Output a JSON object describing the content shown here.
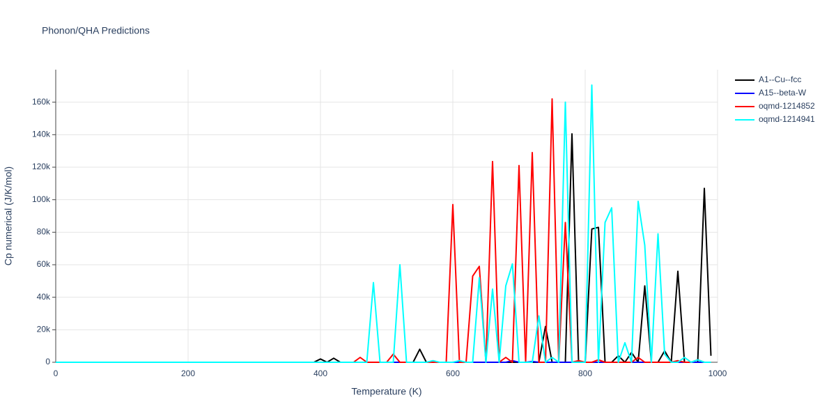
{
  "chart_data": {
    "type": "line",
    "title": "Phonon/QHA Predictions",
    "x_label": "Temperature (K)",
    "y_label": "Cp numerical (J/K/mol)",
    "x": [
      0,
      10,
      20,
      30,
      40,
      50,
      60,
      70,
      80,
      90,
      100,
      110,
      120,
      130,
      140,
      150,
      160,
      170,
      180,
      190,
      200,
      210,
      220,
      230,
      240,
      250,
      260,
      270,
      280,
      290,
      300,
      310,
      320,
      330,
      340,
      350,
      360,
      370,
      380,
      390,
      400,
      410,
      420,
      430,
      440,
      450,
      460,
      470,
      480,
      490,
      500,
      510,
      520,
      530,
      540,
      550,
      560,
      570,
      580,
      590,
      600,
      610,
      620,
      630,
      640,
      650,
      660,
      670,
      680,
      690,
      700,
      710,
      720,
      730,
      740,
      750,
      760,
      770,
      780,
      790,
      800,
      810,
      820,
      830,
      840,
      850,
      860,
      870,
      880,
      890,
      900,
      910,
      920,
      930,
      940,
      950,
      960,
      970,
      980,
      990
    ],
    "series": [
      {
        "name": "A1--Cu--fcc",
        "color": "#000000",
        "values": [
          0,
          0,
          0,
          0,
          0,
          0,
          0,
          0,
          0,
          0,
          0,
          0,
          0,
          0,
          0,
          0,
          0,
          0,
          0,
          0,
          0,
          0,
          0,
          0,
          0,
          0,
          0,
          0,
          0,
          0,
          0,
          0,
          0,
          0,
          0,
          0,
          0,
          0,
          0,
          0,
          2000,
          0,
          2500,
          0,
          0,
          0,
          0,
          0,
          0,
          0,
          0,
          0,
          0,
          0,
          0,
          8000,
          0,
          0,
          0,
          0,
          0,
          0,
          0,
          0,
          0,
          0,
          0,
          0,
          0,
          0,
          0,
          0,
          0,
          0,
          22000,
          0,
          0,
          0,
          140500,
          0,
          0,
          82000,
          83000,
          0,
          0,
          4000,
          0,
          6000,
          0,
          47000,
          0,
          0,
          7000,
          0,
          56000,
          0,
          0,
          0,
          107000,
          4000
        ]
      },
      {
        "name": "A15--beta-W",
        "color": "#0000ff",
        "values": [
          0,
          0,
          0,
          0,
          0,
          0,
          0,
          0,
          0,
          0,
          0,
          0,
          0,
          0,
          0,
          0,
          0,
          0,
          0,
          0,
          0,
          0,
          0,
          0,
          0,
          0,
          0,
          0,
          0,
          0,
          0,
          0,
          0,
          0,
          0,
          0,
          0,
          0,
          0,
          0,
          0,
          0,
          0,
          0,
          0,
          0,
          0,
          0,
          0,
          0,
          0,
          0,
          0,
          0,
          0,
          0,
          0,
          0,
          0,
          0,
          0,
          0,
          0,
          0,
          0,
          0,
          0,
          0,
          0,
          1000,
          0,
          0,
          500,
          0,
          0,
          0,
          0,
          0,
          0,
          0,
          0,
          0,
          0,
          0,
          0,
          0,
          0,
          0,
          0,
          0,
          0,
          0,
          0,
          0,
          0,
          0,
          0,
          0,
          0,
          0
        ]
      },
      {
        "name": "oqmd-1214852",
        "color": "#ff0000",
        "values": [
          0,
          0,
          0,
          0,
          0,
          0,
          0,
          0,
          0,
          0,
          0,
          0,
          0,
          0,
          0,
          0,
          0,
          0,
          0,
          0,
          0,
          0,
          0,
          0,
          0,
          0,
          0,
          0,
          0,
          0,
          0,
          0,
          0,
          0,
          0,
          0,
          0,
          0,
          0,
          0,
          0,
          0,
          0,
          0,
          0,
          0,
          3000,
          0,
          0,
          0,
          0,
          5000,
          0,
          0,
          0,
          0,
          0,
          0,
          0,
          0,
          97000,
          0,
          0,
          53000,
          59000,
          0,
          123500,
          0,
          3000,
          0,
          121000,
          0,
          129000,
          0,
          0,
          162000,
          0,
          86000,
          0,
          1000,
          0,
          0,
          1500,
          0,
          0,
          0,
          0,
          0,
          3000,
          0,
          0,
          0,
          0,
          0,
          1000,
          0,
          0,
          1500,
          0,
          0
        ]
      },
      {
        "name": "oqmd-1214941",
        "color": "#00ffff",
        "values": [
          0,
          0,
          0,
          0,
          0,
          0,
          0,
          0,
          0,
          0,
          0,
          0,
          0,
          0,
          0,
          0,
          0,
          0,
          0,
          0,
          0,
          0,
          0,
          0,
          0,
          0,
          0,
          0,
          0,
          0,
          0,
          0,
          0,
          0,
          0,
          0,
          0,
          0,
          0,
          0,
          0,
          0,
          0,
          0,
          0,
          0,
          0,
          0,
          49000,
          0,
          0,
          0,
          60000,
          0,
          0,
          0,
          0,
          1000,
          0,
          0,
          0,
          1000,
          0,
          0,
          52000,
          0,
          45000,
          0,
          47000,
          60500,
          0,
          0,
          0,
          28500,
          0,
          3000,
          0,
          160000,
          0,
          0,
          0,
          170500,
          0,
          86000,
          95000,
          0,
          12000,
          0,
          99000,
          72000,
          0,
          79000,
          5000,
          0,
          0,
          3000,
          0,
          1500,
          0,
          0
        ]
      }
    ],
    "xlim": [
      0,
      1000
    ],
    "xticks": [
      0,
      200,
      400,
      600,
      800,
      1000
    ],
    "ylim": [
      0,
      180000
    ],
    "yticks": [
      0,
      {
        "value": 20000,
        "label": "20k"
      },
      {
        "value": 40000,
        "label": "40k"
      },
      {
        "value": 60000,
        "label": "60k"
      },
      {
        "value": 80000,
        "label": "80k"
      },
      {
        "value": 100000,
        "label": "100k"
      },
      {
        "value": 120000,
        "label": "120k"
      },
      {
        "value": 140000,
        "label": "140k"
      },
      {
        "value": 160000,
        "label": "160k"
      }
    ],
    "grid": true,
    "legend": "right"
  }
}
